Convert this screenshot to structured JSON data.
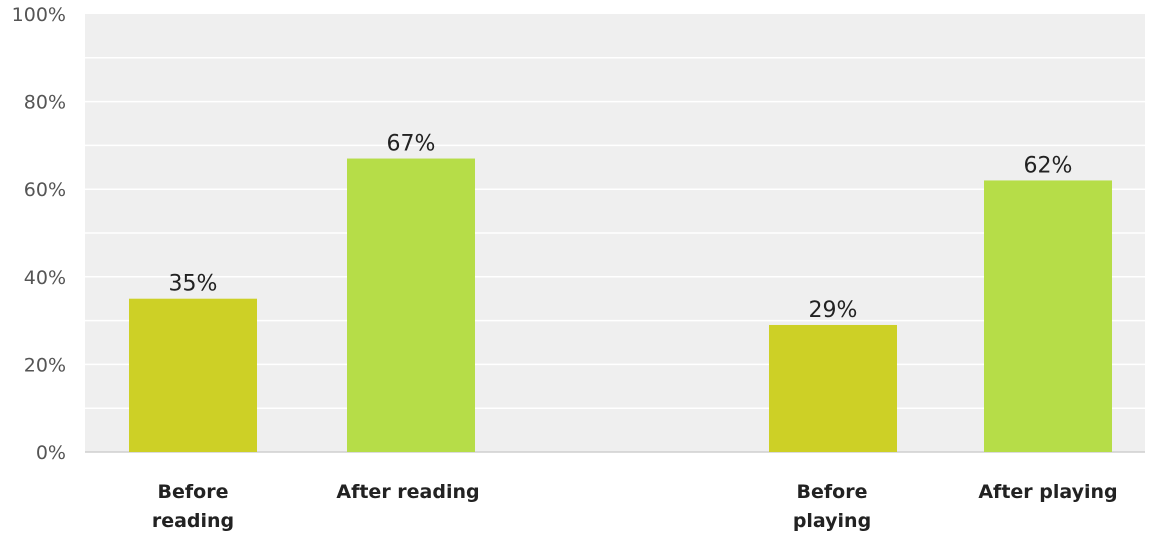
{
  "chart_data": {
    "type": "bar",
    "title": "",
    "xlabel": "",
    "ylabel": "",
    "ylim": [
      0,
      100
    ],
    "y_ticks": [
      "0%",
      "20%",
      "40%",
      "60%",
      "80%",
      "100%"
    ],
    "y_tick_values": [
      0,
      20,
      40,
      60,
      80,
      100
    ],
    "grid": true,
    "categories": [
      {
        "label_lines": [
          "Before",
          "reading"
        ]
      },
      {
        "label_lines": [
          "After reading"
        ]
      },
      {
        "label_lines": [
          "Before",
          "playing"
        ]
      },
      {
        "label_lines": [
          "After playing"
        ]
      }
    ],
    "values": [
      35,
      67,
      29,
      62
    ],
    "value_labels": [
      "35%",
      "67%",
      "29%",
      "62%"
    ],
    "colors": [
      "#cdd026",
      "#b6dd48",
      "#cdd026",
      "#b6dd48"
    ],
    "plot_background": "#efefef",
    "grid_color": "#ffffff"
  }
}
